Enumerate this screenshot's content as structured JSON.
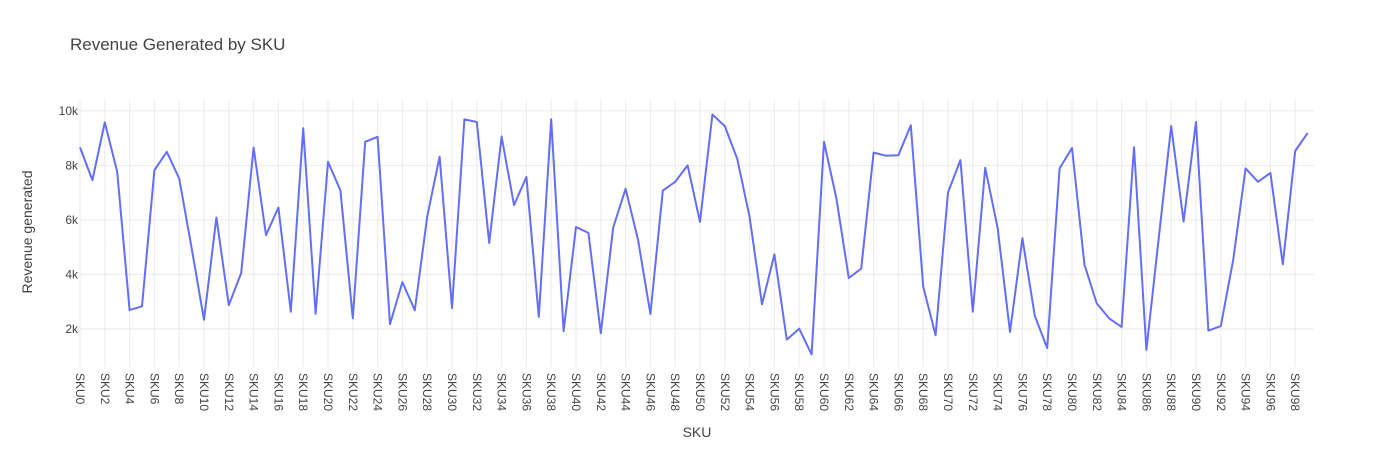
{
  "chart_data": {
    "type": "line",
    "title": "Revenue Generated by SKU",
    "xlabel": "SKU",
    "ylabel": "Revenue generated",
    "ylim": [
      600,
      10400
    ],
    "yticks": [
      {
        "value": 2000,
        "label": "2k"
      },
      {
        "value": 4000,
        "label": "4k"
      },
      {
        "value": 6000,
        "label": "6k"
      },
      {
        "value": 8000,
        "label": "8k"
      },
      {
        "value": 10000,
        "label": "10k"
      }
    ],
    "grid": true,
    "line_color": "#636efa",
    "series": [
      {
        "categories": [
          "SKU0",
          "SKU1",
          "SKU2",
          "SKU3",
          "SKU4",
          "SKU5",
          "SKU6",
          "SKU7",
          "SKU8",
          "SKU9",
          "SKU10",
          "SKU11",
          "SKU12",
          "SKU13",
          "SKU14",
          "SKU15",
          "SKU16",
          "SKU17",
          "SKU18",
          "SKU19",
          "SKU20",
          "SKU21",
          "SKU22",
          "SKU23",
          "SKU24",
          "SKU25",
          "SKU26",
          "SKU27",
          "SKU28",
          "SKU29",
          "SKU30",
          "SKU31",
          "SKU32",
          "SKU33",
          "SKU34",
          "SKU35",
          "SKU36",
          "SKU37",
          "SKU38",
          "SKU39",
          "SKU40",
          "SKU41",
          "SKU42",
          "SKU43",
          "SKU44",
          "SKU45",
          "SKU46",
          "SKU47",
          "SKU48",
          "SKU49",
          "SKU50",
          "SKU51",
          "SKU52",
          "SKU53",
          "SKU54",
          "SKU55",
          "SKU56",
          "SKU57",
          "SKU58",
          "SKU59",
          "SKU60",
          "SKU61",
          "SKU62",
          "SKU63",
          "SKU64",
          "SKU65",
          "SKU66",
          "SKU67",
          "SKU68",
          "SKU69",
          "SKU70",
          "SKU71",
          "SKU72",
          "SKU73",
          "SKU74",
          "SKU75",
          "SKU76",
          "SKU77",
          "SKU78",
          "SKU79",
          "SKU80",
          "SKU81",
          "SKU82",
          "SKU83",
          "SKU84",
          "SKU85",
          "SKU86",
          "SKU87",
          "SKU88",
          "SKU89",
          "SKU90",
          "SKU91",
          "SKU92",
          "SKU93",
          "SKU94",
          "SKU95",
          "SKU96",
          "SKU97",
          "SKU98",
          "SKU99"
        ],
        "values": [
          8662,
          7461,
          9578,
          7767,
          2687,
          2828,
          7823,
          8497,
          7517,
          4971,
          2331,
          6088,
          2873,
          4052,
          8653,
          5443,
          6454,
          2629,
          9365,
          2553,
          8128,
          7087,
          2391,
          8865,
          9049,
          2175,
          3717,
          2686,
          6117,
          8319,
          2767,
          9692,
          9591,
          5150,
          9061,
          6541,
          7573,
          2439,
          9692,
          1913,
          5738,
          5522,
          1841,
          5720,
          7140,
          5277,
          2547,
          7075,
          7399,
          8001,
          5925,
          9866,
          9441,
          8245,
          6106,
          2902,
          4731,
          1606,
          2006,
          1061,
          8865,
          6788,
          3868,
          4213,
          8471,
          8357,
          8375,
          9473,
          3550,
          1769,
          7010,
          8195,
          2630,
          7911,
          5709,
          1890,
          5324,
          2474,
          1293,
          7889,
          8639,
          4365,
          2930,
          2384,
          2072,
          8669,
          1230,
          5352,
          9444,
          5935,
          9593,
          1936,
          2100,
          4532,
          7889,
          7396,
          7724,
          4370,
          8527,
          9185
        ]
      }
    ]
  }
}
